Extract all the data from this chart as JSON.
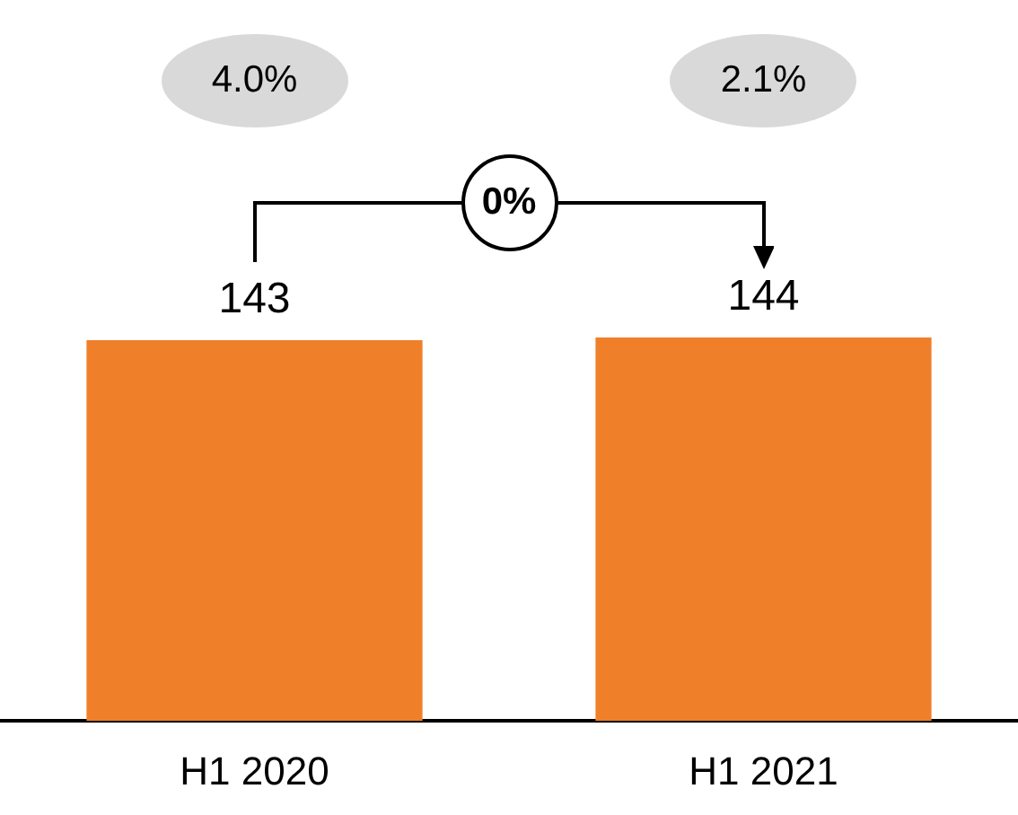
{
  "chart_data": {
    "type": "bar",
    "categories": [
      "H1 2020",
      "H1 2021"
    ],
    "values": [
      143,
      144
    ],
    "color": "#f07f2a",
    "data_labels": true,
    "annotations": [
      "4.0%",
      "2.1%",
      "0%"
    ]
  }
}
